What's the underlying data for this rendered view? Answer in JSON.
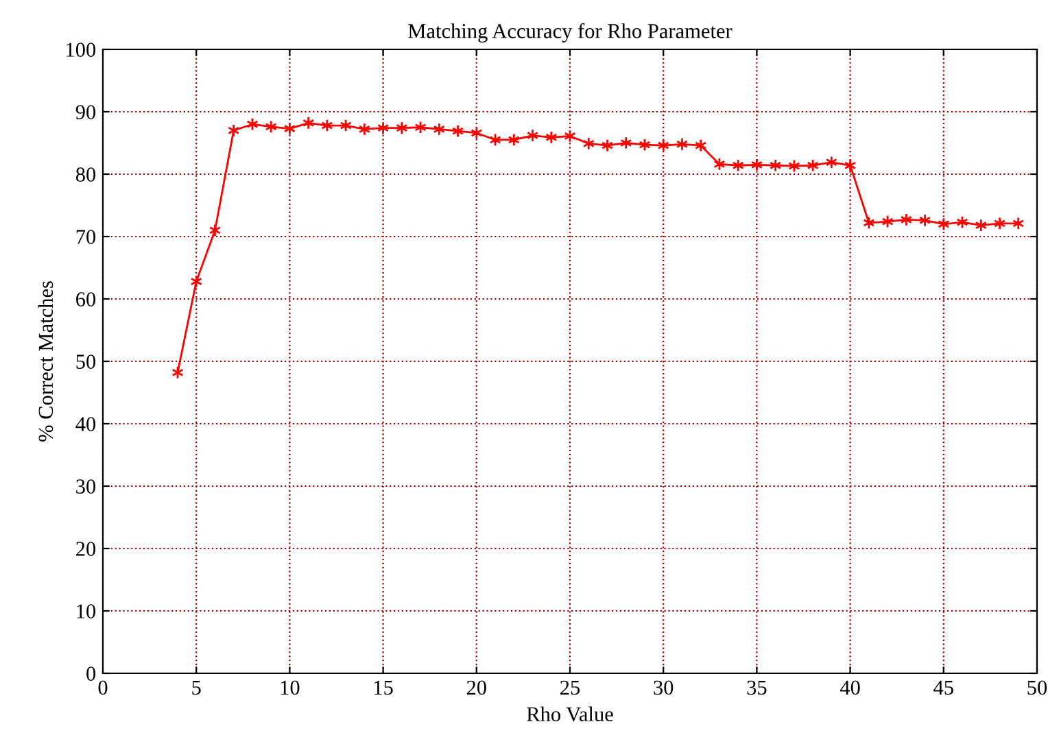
{
  "chart_data": {
    "type": "line",
    "title": "Matching Accuracy for Rho Parameter",
    "xlabel": "Rho Value",
    "ylabel": "% Correct Matches",
    "x": [
      4,
      5,
      6,
      7,
      8,
      9,
      10,
      11,
      12,
      13,
      14,
      15,
      16,
      17,
      18,
      19,
      20,
      21,
      22,
      23,
      24,
      25,
      26,
      27,
      28,
      29,
      30,
      31,
      32,
      33,
      34,
      35,
      36,
      37,
      38,
      39,
      40,
      41,
      42,
      43,
      44,
      45,
      46,
      47,
      48,
      49
    ],
    "series": [
      {
        "color": "#ff0000",
        "values": [
          48.2,
          62.8,
          71,
          87,
          88,
          87.6,
          87.3,
          88.2,
          87.8,
          87.8,
          87.2,
          87.4,
          87.4,
          87.5,
          87.2,
          86.9,
          86.6,
          85.5,
          85.5,
          86.2,
          85.9,
          86.1,
          84.9,
          84.6,
          85,
          84.7,
          84.6,
          84.8,
          84.6,
          81.6,
          81.4,
          81.5,
          81.4,
          81.3,
          81.4,
          81.9,
          81.4,
          72.2,
          72.4,
          72.7,
          72.6,
          72,
          72.3,
          71.8,
          72.1,
          72.1
        ]
      }
    ],
    "xlim": [
      0,
      50
    ],
    "xticks": [
      0,
      5,
      10,
      15,
      20,
      25,
      30,
      35,
      40,
      45,
      50
    ],
    "ylim": [
      0,
      100
    ],
    "yticks": [
      0,
      10,
      20,
      30,
      40,
      50,
      60,
      70,
      80,
      90,
      100
    ],
    "grid": true,
    "marker": "cross",
    "line_style": "solid"
  }
}
